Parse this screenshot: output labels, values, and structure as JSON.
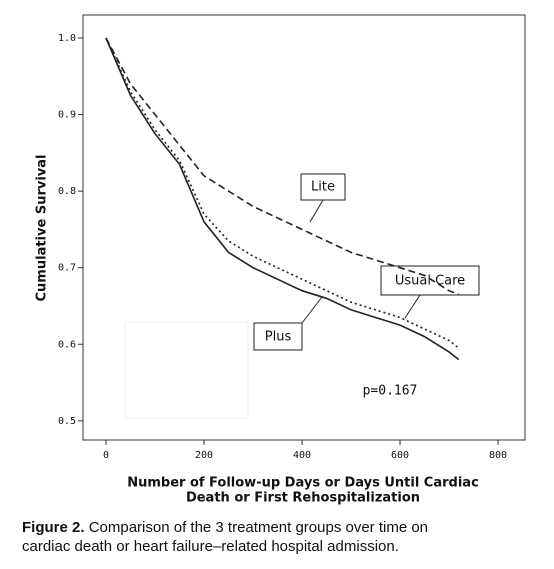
{
  "chart_data": {
    "type": "line",
    "x": [
      0,
      50,
      100,
      150,
      200,
      250,
      300,
      350,
      400,
      450,
      500,
      550,
      600,
      650,
      700,
      720
    ],
    "series": [
      {
        "name": "Lite",
        "color": "#222222",
        "dash": "7,4",
        "values": [
          1.0,
          0.94,
          0.9,
          0.86,
          0.82,
          0.8,
          0.78,
          0.765,
          0.75,
          0.735,
          0.72,
          0.71,
          0.7,
          0.69,
          0.67,
          0.665
        ]
      },
      {
        "name": "Usual Care",
        "color": "#222222",
        "dash": "2,3",
        "values": [
          1.0,
          0.93,
          0.88,
          0.84,
          0.77,
          0.735,
          0.715,
          0.7,
          0.685,
          0.67,
          0.655,
          0.645,
          0.635,
          0.62,
          0.605,
          0.595
        ]
      },
      {
        "name": "Plus",
        "color": "#222222",
        "dash": "none",
        "values": [
          1.0,
          0.925,
          0.875,
          0.835,
          0.76,
          0.72,
          0.7,
          0.685,
          0.67,
          0.66,
          0.645,
          0.635,
          0.625,
          0.61,
          0.59,
          0.58
        ]
      }
    ],
    "xlim": [
      -47,
      855
    ],
    "ylim": [
      0.475,
      1.03
    ],
    "xticks": [
      0,
      200,
      400,
      600,
      800
    ],
    "yticks": [
      {
        "value": 1.0,
        "label": "1.0"
      },
      0.9,
      0.8,
      0.7,
      0.6,
      0.5
    ],
    "y_label": "Cumulative Survival",
    "x_label": [
      "Number of Follow-up Days or Days Until Cardiac",
      "Death or First Rehospitalization"
    ],
    "annotation": "p=0.167"
  },
  "caption": {
    "label": "Figure 2.",
    "lines": [
      "Comparison of the 3 treatment groups over time on",
      "cardiac death or heart failure–related hospital admission."
    ]
  }
}
